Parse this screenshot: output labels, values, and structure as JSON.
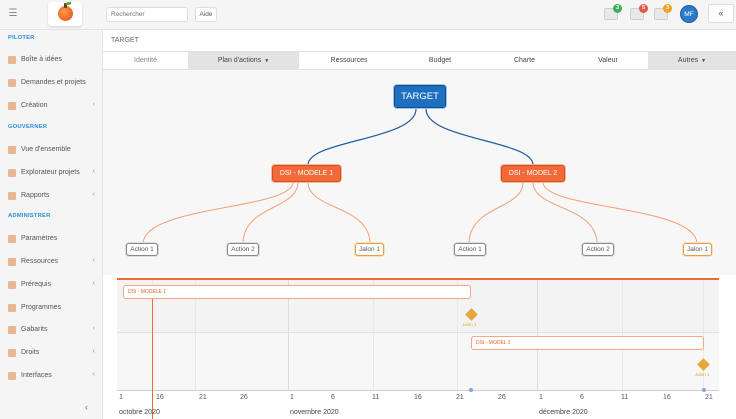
{
  "topbar": {
    "search_placeholder": "Rechercher",
    "help_label": "Aide",
    "notifications": [
      {
        "name": "tasks-icon",
        "count": "3",
        "color": "#3cae5c"
      },
      {
        "name": "alerts-icon",
        "count": "5",
        "color": "#e45a4a"
      },
      {
        "name": "messages-icon",
        "count": "3",
        "color": "#f0a41e"
      }
    ],
    "avatar_initials": "MF",
    "collapse_label": "«"
  },
  "sidebar": {
    "sections": [
      {
        "title": "PILOTER",
        "items": [
          {
            "label": "Boîte à idées",
            "icon": "lightbulb-icon",
            "chevron": false
          },
          {
            "label": "Demandes et projets",
            "icon": "projects-icon",
            "chevron": false
          },
          {
            "label": "Création",
            "icon": "create-icon",
            "chevron": true
          }
        ]
      },
      {
        "title": "GOUVERNER",
        "items": [
          {
            "label": "Vue d'ensemble",
            "icon": "overview-icon",
            "chevron": false
          },
          {
            "label": "Explorateur projets",
            "icon": "explorer-icon",
            "chevron": true
          },
          {
            "label": "Rapports",
            "icon": "reports-icon",
            "chevron": true
          }
        ]
      },
      {
        "title": "ADMINISTRER",
        "items": [
          {
            "label": "Paramètres",
            "icon": "settings-icon",
            "chevron": false
          },
          {
            "label": "Ressources",
            "icon": "resources-icon",
            "chevron": true
          },
          {
            "label": "Prérequis",
            "icon": "prereq-icon",
            "chevron": true
          },
          {
            "label": "Programmes",
            "icon": "programs-icon",
            "chevron": false
          },
          {
            "label": "Gabarits",
            "icon": "templates-icon",
            "chevron": true
          },
          {
            "label": "Droits",
            "icon": "rights-icon",
            "chevron": true
          },
          {
            "label": "Interfaces",
            "icon": "interfaces-icon",
            "chevron": true
          }
        ]
      }
    ],
    "chevron_glyph": "‹",
    "collapse_glyph": "‹"
  },
  "breadcrumb": "TARGET",
  "tabs": [
    {
      "label": "Identité",
      "state": "disabled"
    },
    {
      "label": "Plan d'actions",
      "state": "active",
      "dropdown": true
    },
    {
      "label": "Ressources",
      "state": "normal"
    },
    {
      "label": "Budget",
      "state": "normal"
    },
    {
      "label": "Charte",
      "state": "normal"
    },
    {
      "label": "Valeur",
      "state": "normal"
    },
    {
      "label": "Autres",
      "state": "gray",
      "dropdown": true
    }
  ],
  "tree": {
    "root": "TARGET",
    "models": [
      {
        "label": "DSI - MODELE 1",
        "children": [
          "Action 1",
          "Action 2",
          "Jalon 1"
        ]
      },
      {
        "label": "DSI - MODEL 2",
        "children": [
          "Action 1",
          "Action 2",
          "Jalon 1"
        ]
      }
    ]
  },
  "gantt": {
    "bars": [
      {
        "label": "DSI - MODELE 1"
      },
      {
        "label": "DSI - MODEL 2"
      }
    ],
    "milestones": [
      {
        "label": "Jalon 1"
      },
      {
        "label": "Jalon 1"
      }
    ],
    "ticks": [
      "1",
      "16",
      "21",
      "26",
      "1",
      "6",
      "11",
      "16",
      "21",
      "26",
      "1",
      "6",
      "11",
      "16",
      "21"
    ],
    "months": [
      "octobre 2020",
      "novembre 2020",
      "décembre 2020"
    ]
  },
  "colors": {
    "accent": "#f26a3a",
    "root_node": "#1f6fc1",
    "milestone": "#e6a83c",
    "section_title": "#2b8fd6"
  }
}
